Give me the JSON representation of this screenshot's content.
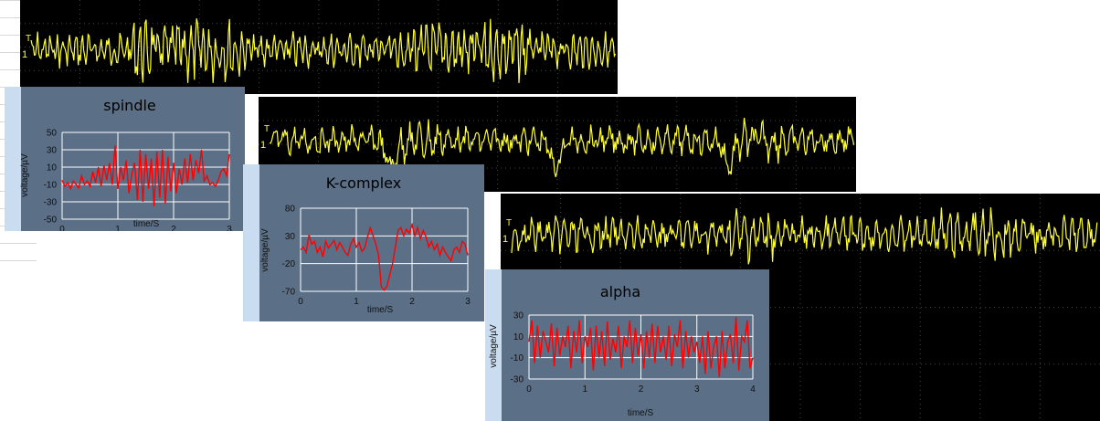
{
  "oscilloscope": {
    "trace_color": "#ffff33",
    "screen_color": "#000000",
    "channel_marker": "1",
    "trigger_marker": "T"
  },
  "colors": {
    "panel_bg": "#5b6f87",
    "panel_strip": "#c9dcf0",
    "plot_line": "#ff0000",
    "grid": "#ffffff"
  },
  "chart_data": [
    {
      "type": "line",
      "title": "spindle",
      "xlabel": "time/S",
      "ylabel": "voltage/µV",
      "xlim": [
        0,
        3
      ],
      "ylim": [
        -50,
        50
      ],
      "xticks": [
        "0",
        "1",
        "2",
        "3"
      ],
      "yticks": [
        "50",
        "30",
        "10",
        "-10",
        "-30",
        "-50"
      ],
      "grid": true,
      "series": [
        {
          "color": "#ff0000",
          "x": [
            0,
            0.05,
            0.1,
            0.15,
            0.2,
            0.25,
            0.3,
            0.35,
            0.4,
            0.45,
            0.5,
            0.55,
            0.6,
            0.65,
            0.7,
            0.75,
            0.8,
            0.85,
            0.9,
            0.95,
            1.0,
            1.05,
            1.1,
            1.15,
            1.2,
            1.25,
            1.3,
            1.35,
            1.4,
            1.45,
            1.5,
            1.55,
            1.6,
            1.65,
            1.7,
            1.75,
            1.8,
            1.85,
            1.9,
            1.95,
            2.0,
            2.05,
            2.1,
            2.15,
            2.2,
            2.25,
            2.3,
            2.35,
            2.4,
            2.45,
            2.5,
            2.55,
            2.6,
            2.65,
            2.7,
            2.75,
            2.8,
            2.85,
            2.9,
            2.95,
            3.0
          ],
          "y": [
            -5,
            -12,
            -8,
            -15,
            -6,
            -10,
            -14,
            0,
            -10,
            -6,
            -12,
            5,
            -8,
            10,
            -12,
            12,
            -5,
            15,
            -10,
            35,
            -15,
            10,
            -5,
            18,
            -20,
            2,
            15,
            -28,
            30,
            -30,
            25,
            -15,
            20,
            -35,
            28,
            -25,
            30,
            -32,
            22,
            -18,
            15,
            -20,
            8,
            -10,
            20,
            -8,
            25,
            -5,
            18,
            3,
            30,
            -6,
            0,
            -10,
            -8,
            -12,
            -5,
            5,
            8,
            0,
            25
          ]
        }
      ]
    },
    {
      "type": "line",
      "title": "K-complex",
      "xlabel": "time/S",
      "ylabel": "voltage/µV",
      "xlim": [
        0,
        3
      ],
      "ylim": [
        -70,
        80
      ],
      "xticks": [
        "0",
        "1",
        "2",
        "3"
      ],
      "yticks": [
        "80",
        "30",
        "-20",
        "-70"
      ],
      "grid": true,
      "series": [
        {
          "color": "#ff0000",
          "x": [
            0,
            0.05,
            0.1,
            0.15,
            0.2,
            0.25,
            0.3,
            0.35,
            0.4,
            0.45,
            0.5,
            0.55,
            0.6,
            0.65,
            0.7,
            0.75,
            0.8,
            0.85,
            0.9,
            0.95,
            1.0,
            1.05,
            1.1,
            1.15,
            1.2,
            1.25,
            1.3,
            1.35,
            1.4,
            1.45,
            1.5,
            1.55,
            1.6,
            1.65,
            1.7,
            1.75,
            1.8,
            1.85,
            1.9,
            1.95,
            2.0,
            2.05,
            2.1,
            2.15,
            2.2,
            2.25,
            2.3,
            2.35,
            2.4,
            2.45,
            2.5,
            2.55,
            2.6,
            2.65,
            2.7,
            2.75,
            2.8,
            2.85,
            2.9,
            2.95,
            3.0
          ],
          "y": [
            5,
            10,
            0,
            32,
            15,
            20,
            0,
            10,
            -8,
            20,
            8,
            15,
            22,
            5,
            18,
            10,
            0,
            -5,
            15,
            25,
            10,
            18,
            2,
            8,
            28,
            45,
            30,
            15,
            -5,
            -62,
            -68,
            -60,
            -40,
            -20,
            10,
            40,
            45,
            30,
            42,
            35,
            50,
            30,
            45,
            25,
            40,
            28,
            10,
            20,
            5,
            15,
            -5,
            10,
            0,
            -8,
            -15,
            5,
            10,
            0,
            20,
            15,
            -5
          ]
        }
      ]
    },
    {
      "type": "line",
      "title": "alpha",
      "xlabel": "time/S",
      "ylabel": "voltage/µV",
      "xlim": [
        0,
        4
      ],
      "ylim": [
        -30,
        30
      ],
      "xticks": [
        "0",
        "1",
        "2",
        "3",
        "4"
      ],
      "yticks": [
        "30",
        "10",
        "-10",
        "-30"
      ],
      "grid": true,
      "series": [
        {
          "color": "#ff0000",
          "x": [
            0,
            0.05,
            0.1,
            0.15,
            0.2,
            0.25,
            0.3,
            0.35,
            0.4,
            0.45,
            0.5,
            0.55,
            0.6,
            0.65,
            0.7,
            0.75,
            0.8,
            0.85,
            0.9,
            0.95,
            1.0,
            1.05,
            1.1,
            1.15,
            1.2,
            1.25,
            1.3,
            1.35,
            1.4,
            1.45,
            1.5,
            1.55,
            1.6,
            1.65,
            1.7,
            1.75,
            1.8,
            1.85,
            1.9,
            1.95,
            2.0,
            2.05,
            2.1,
            2.15,
            2.2,
            2.25,
            2.3,
            2.35,
            2.4,
            2.45,
            2.5,
            2.55,
            2.6,
            2.65,
            2.7,
            2.75,
            2.8,
            2.85,
            2.9,
            2.95,
            3.0,
            3.05,
            3.1,
            3.15,
            3.2,
            3.25,
            3.3,
            3.35,
            3.4,
            3.45,
            3.5,
            3.55,
            3.6,
            3.65,
            3.7,
            3.75,
            3.8,
            3.85,
            3.9,
            3.95,
            4.0
          ],
          "y": [
            5,
            25,
            -15,
            20,
            -10,
            15,
            5,
            -5,
            22,
            -18,
            18,
            -8,
            10,
            0,
            20,
            -20,
            15,
            -5,
            25,
            -15,
            10,
            0,
            18,
            -22,
            20,
            -10,
            15,
            -18,
            24,
            -12,
            8,
            -5,
            20,
            -20,
            10,
            0,
            25,
            -15,
            18,
            -8,
            12,
            -20,
            15,
            -10,
            22,
            -15,
            20,
            -5,
            10,
            -12,
            20,
            -18,
            12,
            0,
            25,
            -20,
            15,
            -10,
            10,
            -5,
            5,
            -15,
            10,
            -25,
            15,
            -20,
            0,
            10,
            -28,
            15,
            -20,
            5,
            12,
            -15,
            28,
            -22,
            10,
            5,
            25,
            -20,
            -10
          ]
        }
      ]
    }
  ]
}
